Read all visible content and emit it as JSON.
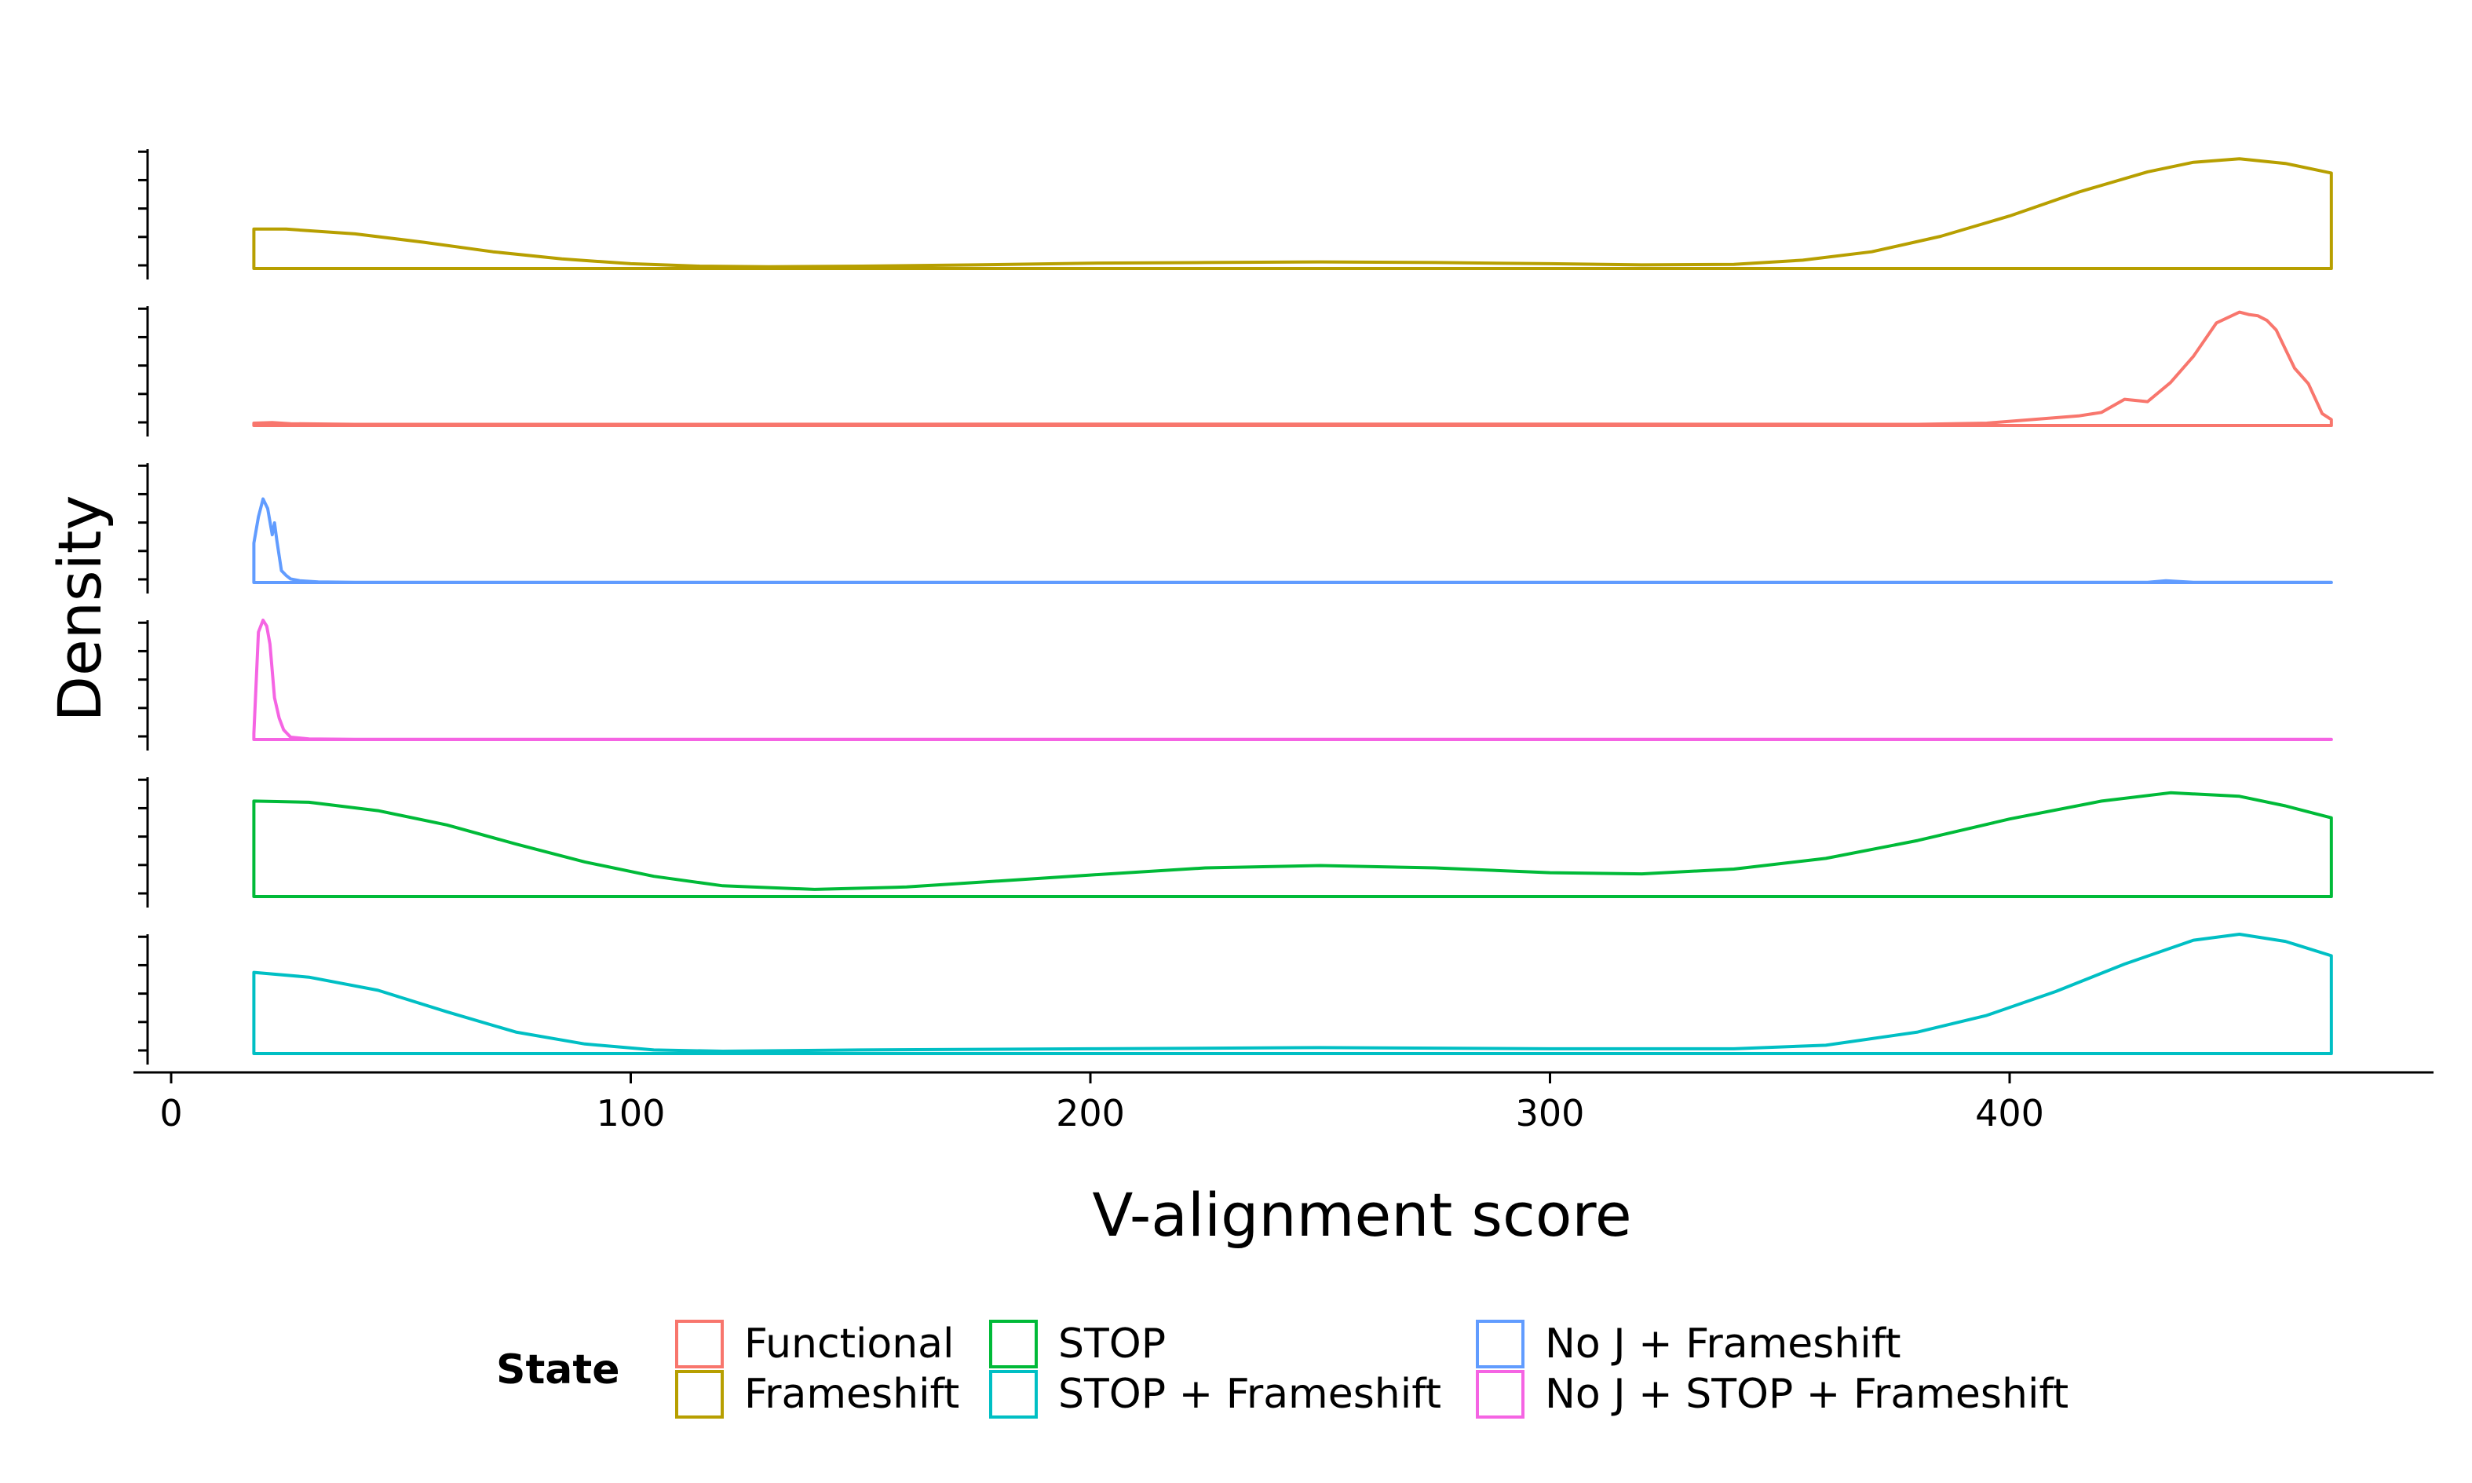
{
  "chart_data": {
    "type": "area",
    "title": "",
    "xlabel": "V-alignment score",
    "ylabel": "Density",
    "xlim": [
      0,
      492
    ],
    "x_ticks": [
      0,
      100,
      200,
      300,
      400
    ],
    "x_tick_labels": [
      "0",
      "100",
      "200",
      "300",
      "400"
    ],
    "grid": false,
    "legend": {
      "title": "State",
      "position": "bottom",
      "columns": [
        [
          "Functional",
          "Frameshift"
        ],
        [
          "STOP",
          "STOP + Frameshift"
        ],
        [
          "No J + Frameshift",
          "No J + STOP + Frameshift"
        ]
      ]
    },
    "panel_order_top_to_bottom": [
      "Frameshift",
      "Functional",
      "No J + Frameshift",
      "No J + STOP + Frameshift",
      "STOP",
      "STOP + Frameshift"
    ],
    "series": [
      {
        "name": "Frameshift",
        "color": "#B79F00",
        "x": [
          18,
          25,
          40,
          55,
          70,
          85,
          100,
          115,
          130,
          150,
          175,
          200,
          225,
          250,
          275,
          300,
          320,
          340,
          355,
          370,
          385,
          400,
          415,
          430,
          440,
          450,
          460,
          470
        ],
        "y": [
          0.33,
          0.33,
          0.29,
          0.22,
          0.14,
          0.08,
          0.04,
          0.02,
          0.015,
          0.02,
          0.03,
          0.045,
          0.05,
          0.055,
          0.05,
          0.04,
          0.03,
          0.035,
          0.07,
          0.14,
          0.27,
          0.44,
          0.64,
          0.81,
          0.89,
          0.92,
          0.88,
          0.8
        ]
      },
      {
        "name": "Functional",
        "color": "#F8766D",
        "x": [
          18,
          22,
          26,
          40,
          100,
          200,
          300,
          380,
          395,
          405,
          415,
          420,
          425,
          430,
          435,
          440,
          445,
          450,
          452,
          454,
          456,
          458,
          460,
          462,
          465,
          468,
          470
        ],
        "y": [
          0.02,
          0.025,
          0.015,
          0.01,
          0.01,
          0.012,
          0.012,
          0.01,
          0.02,
          0.05,
          0.08,
          0.11,
          0.22,
          0.2,
          0.36,
          0.58,
          0.86,
          0.95,
          0.93,
          0.92,
          0.88,
          0.8,
          0.64,
          0.48,
          0.35,
          0.1,
          0.05
        ]
      },
      {
        "name": "No J + Frameshift",
        "color": "#619CFF",
        "x": [
          18,
          19,
          20,
          21,
          22,
          22.5,
          23,
          24,
          25,
          26,
          28,
          32,
          40,
          100,
          200,
          300,
          400,
          430,
          434,
          440,
          470
        ],
        "y": [
          0.33,
          0.55,
          0.7,
          0.62,
          0.4,
          0.5,
          0.35,
          0.1,
          0.06,
          0.03,
          0.015,
          0.005,
          0.002,
          0.002,
          0.002,
          0.002,
          0.002,
          0.002,
          0.015,
          0.002,
          0.002
        ]
      },
      {
        "name": "No J + STOP + Frameshift",
        "color": "#F564E3",
        "x": [
          18,
          19,
          20,
          20.8,
          21.5,
          22.5,
          23.5,
          24.5,
          26,
          30,
          40,
          200,
          470
        ],
        "y": [
          0.05,
          0.9,
          1.0,
          0.95,
          0.8,
          0.35,
          0.18,
          0.08,
          0.02,
          0.005,
          0.002,
          0.002,
          0.002
        ]
      },
      {
        "name": "STOP",
        "color": "#00BA38",
        "x": [
          18,
          30,
          45,
          60,
          75,
          90,
          105,
          120,
          140,
          160,
          180,
          200,
          225,
          250,
          275,
          300,
          320,
          340,
          360,
          380,
          400,
          420,
          435,
          450,
          460,
          470
        ],
        "y": [
          0.8,
          0.79,
          0.72,
          0.6,
          0.44,
          0.29,
          0.17,
          0.09,
          0.06,
          0.08,
          0.13,
          0.18,
          0.24,
          0.26,
          0.24,
          0.2,
          0.19,
          0.23,
          0.32,
          0.47,
          0.65,
          0.8,
          0.87,
          0.84,
          0.76,
          0.66
        ]
      },
      {
        "name": "STOP + Frameshift",
        "color": "#00BFC4",
        "x": [
          18,
          30,
          45,
          60,
          75,
          90,
          105,
          120,
          150,
          200,
          250,
          300,
          340,
          360,
          380,
          395,
          410,
          425,
          440,
          450,
          460,
          470
        ],
        "y": [
          0.68,
          0.64,
          0.53,
          0.35,
          0.18,
          0.08,
          0.03,
          0.02,
          0.03,
          0.04,
          0.05,
          0.04,
          0.04,
          0.07,
          0.18,
          0.32,
          0.52,
          0.75,
          0.95,
          1.0,
          0.94,
          0.82
        ]
      }
    ]
  }
}
